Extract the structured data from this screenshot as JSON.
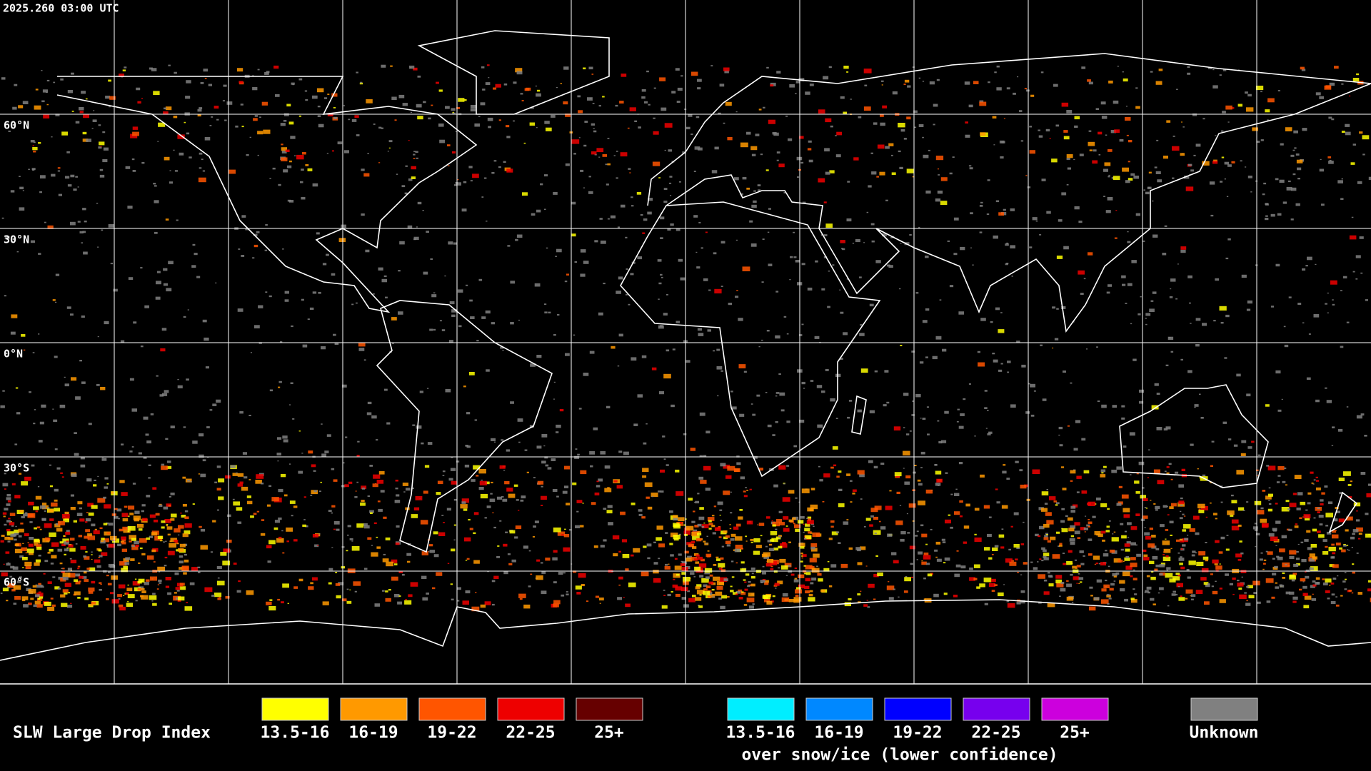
{
  "header": {
    "timestamp": "2025.260 03:00 UTC"
  },
  "map": {
    "latitude_labels": [
      "60°N",
      "30°N",
      "0°N",
      "30°S",
      "60°S"
    ]
  },
  "legend": {
    "title": "SLW Large Drop Index",
    "groups": [
      {
        "items": [
          {
            "label": "13.5-16",
            "color": "#ffff00"
          },
          {
            "label": "16-19",
            "color": "#ff9900"
          },
          {
            "label": "19-22",
            "color": "#ff5500"
          },
          {
            "label": "22-25",
            "color": "#ee0000"
          },
          {
            "label": "25+",
            "color": "#660000"
          }
        ]
      },
      {
        "items": [
          {
            "label": "13.5-16",
            "color": "#00eeff"
          },
          {
            "label": "16-19",
            "color": "#0088ff"
          },
          {
            "label": "19-22",
            "color": "#0000ff"
          },
          {
            "label": "22-25",
            "color": "#7700ee"
          },
          {
            "label": "25+",
            "color": "#cc00dd"
          }
        ],
        "note": "over snow/ice (lower confidence)"
      }
    ],
    "unknown": {
      "label": "Unknown",
      "color": "#808080"
    }
  }
}
